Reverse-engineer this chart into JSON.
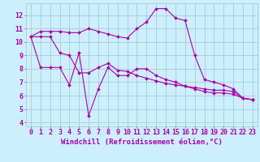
{
  "background_color": "#cceeff",
  "grid_color": "#aacccc",
  "line_color": "#aa00aa",
  "marker_color": "#aa00aa",
  "xlabel": "Windchill (Refroidissement éolien,°C)",
  "xlabel_fontsize": 6.5,
  "tick_fontsize": 6,
  "ylabel_ticks": [
    4,
    5,
    6,
    7,
    8,
    9,
    10,
    11,
    12
  ],
  "xlabel_ticks": [
    0,
    1,
    2,
    3,
    4,
    5,
    6,
    7,
    8,
    9,
    10,
    11,
    12,
    13,
    14,
    15,
    16,
    17,
    18,
    19,
    20,
    21,
    22,
    23
  ],
  "ylim": [
    3.7,
    12.9
  ],
  "xlim": [
    -0.5,
    23.5
  ],
  "series": [
    [
      10.4,
      10.8,
      10.8,
      10.8,
      10.7,
      10.7,
      11.0,
      10.8,
      10.6,
      10.4,
      10.3,
      11.0,
      11.5,
      12.5,
      12.5,
      11.8,
      11.6,
      9.0,
      7.2,
      7.0,
      6.8,
      6.5,
      5.8,
      5.7
    ],
    [
      10.4,
      10.4,
      10.4,
      9.2,
      9.0,
      7.7,
      7.7,
      8.1,
      8.4,
      7.9,
      7.8,
      7.5,
      7.3,
      7.1,
      6.9,
      6.8,
      6.7,
      6.6,
      6.5,
      6.4,
      6.4,
      6.3,
      5.8,
      5.7
    ],
    [
      10.4,
      8.1,
      8.1,
      8.1,
      6.8,
      9.2,
      4.5,
      6.5,
      8.1,
      7.5,
      7.5,
      8.0,
      8.0,
      7.5,
      7.2,
      7.0,
      6.7,
      6.5,
      6.3,
      6.2,
      6.2,
      6.1,
      5.8,
      5.7
    ]
  ]
}
